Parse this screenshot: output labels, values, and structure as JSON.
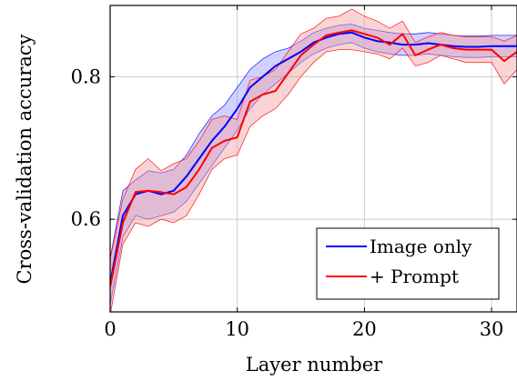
{
  "chart_data": {
    "type": "line",
    "title": "",
    "xlabel": "Layer number",
    "ylabel": "Cross-validation accuracy",
    "xlim": [
      0,
      32
    ],
    "ylim": [
      0.47,
      0.9
    ],
    "xticks": [
      0,
      10,
      20,
      30
    ],
    "yticks": [
      0.6,
      0.8
    ],
    "xtick_labels": [
      "0",
      "10",
      "20",
      "30"
    ],
    "ytick_labels": [
      "0.6",
      "0.8"
    ],
    "grid": true,
    "legend_position": "bottom-right",
    "x": [
      0,
      1,
      2,
      3,
      4,
      5,
      6,
      7,
      8,
      9,
      10,
      11,
      12,
      13,
      14,
      15,
      16,
      17,
      18,
      19,
      20,
      21,
      22,
      23,
      24,
      25,
      26,
      27,
      28,
      29,
      30,
      31,
      32
    ],
    "series": [
      {
        "name": "Image only",
        "color": "#0000ff",
        "fill": "#9999ff",
        "values": [
          0.51,
          0.605,
          0.635,
          0.64,
          0.635,
          0.64,
          0.66,
          0.685,
          0.71,
          0.73,
          0.755,
          0.785,
          0.8,
          0.815,
          0.825,
          0.835,
          0.848,
          0.855,
          0.86,
          0.862,
          0.855,
          0.85,
          0.848,
          0.845,
          0.845,
          0.847,
          0.845,
          0.843,
          0.842,
          0.842,
          0.843,
          0.843,
          0.843
        ],
        "lower": [
          0.48,
          0.575,
          0.605,
          0.6,
          0.605,
          0.61,
          0.625,
          0.65,
          0.675,
          0.7,
          0.725,
          0.755,
          0.775,
          0.79,
          0.805,
          0.82,
          0.832,
          0.84,
          0.845,
          0.848,
          0.84,
          0.835,
          0.832,
          0.83,
          0.83,
          0.832,
          0.83,
          0.828,
          0.827,
          0.827,
          0.828,
          0.828,
          0.828
        ],
        "upper": [
          0.545,
          0.64,
          0.655,
          0.668,
          0.665,
          0.67,
          0.69,
          0.72,
          0.745,
          0.76,
          0.785,
          0.81,
          0.825,
          0.835,
          0.84,
          0.85,
          0.862,
          0.868,
          0.872,
          0.874,
          0.868,
          0.865,
          0.862,
          0.86,
          0.86,
          0.862,
          0.86,
          0.858,
          0.857,
          0.857,
          0.858,
          0.858,
          0.858
        ]
      },
      {
        "name": "+ Prompt",
        "color": "#ff0000",
        "fill": "#f4a0a0",
        "values": [
          0.505,
          0.595,
          0.638,
          0.64,
          0.638,
          0.635,
          0.645,
          0.67,
          0.7,
          0.71,
          0.715,
          0.765,
          0.775,
          0.78,
          0.805,
          0.83,
          0.845,
          0.858,
          0.862,
          0.865,
          0.86,
          0.855,
          0.845,
          0.86,
          0.83,
          0.838,
          0.845,
          0.84,
          0.838,
          0.838,
          0.838,
          0.822,
          0.835
        ],
        "lower": [
          0.465,
          0.565,
          0.595,
          0.59,
          0.6,
          0.595,
          0.605,
          0.635,
          0.67,
          0.685,
          0.69,
          0.73,
          0.745,
          0.755,
          0.775,
          0.8,
          0.82,
          0.835,
          0.838,
          0.838,
          0.835,
          0.832,
          0.825,
          0.84,
          0.815,
          0.82,
          0.83,
          0.825,
          0.82,
          0.82,
          0.82,
          0.79,
          0.81
        ],
        "upper": [
          0.545,
          0.628,
          0.67,
          0.685,
          0.668,
          0.678,
          0.685,
          0.71,
          0.74,
          0.745,
          0.74,
          0.795,
          0.8,
          0.81,
          0.835,
          0.86,
          0.868,
          0.882,
          0.885,
          0.895,
          0.885,
          0.878,
          0.868,
          0.878,
          0.848,
          0.856,
          0.862,
          0.858,
          0.856,
          0.856,
          0.856,
          0.85,
          0.858
        ]
      }
    ]
  }
}
